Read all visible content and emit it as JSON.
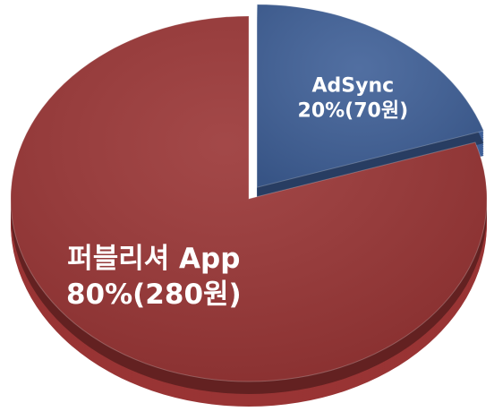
{
  "chart_data": {
    "type": "pie",
    "categories": [
      "AdSync",
      "퍼블리셔 App"
    ],
    "values": [
      20,
      80
    ],
    "value_labels": [
      "20%(70원)",
      "80%(280원)"
    ],
    "colors": [
      "#3e5f97",
      "#993434"
    ]
  }
}
